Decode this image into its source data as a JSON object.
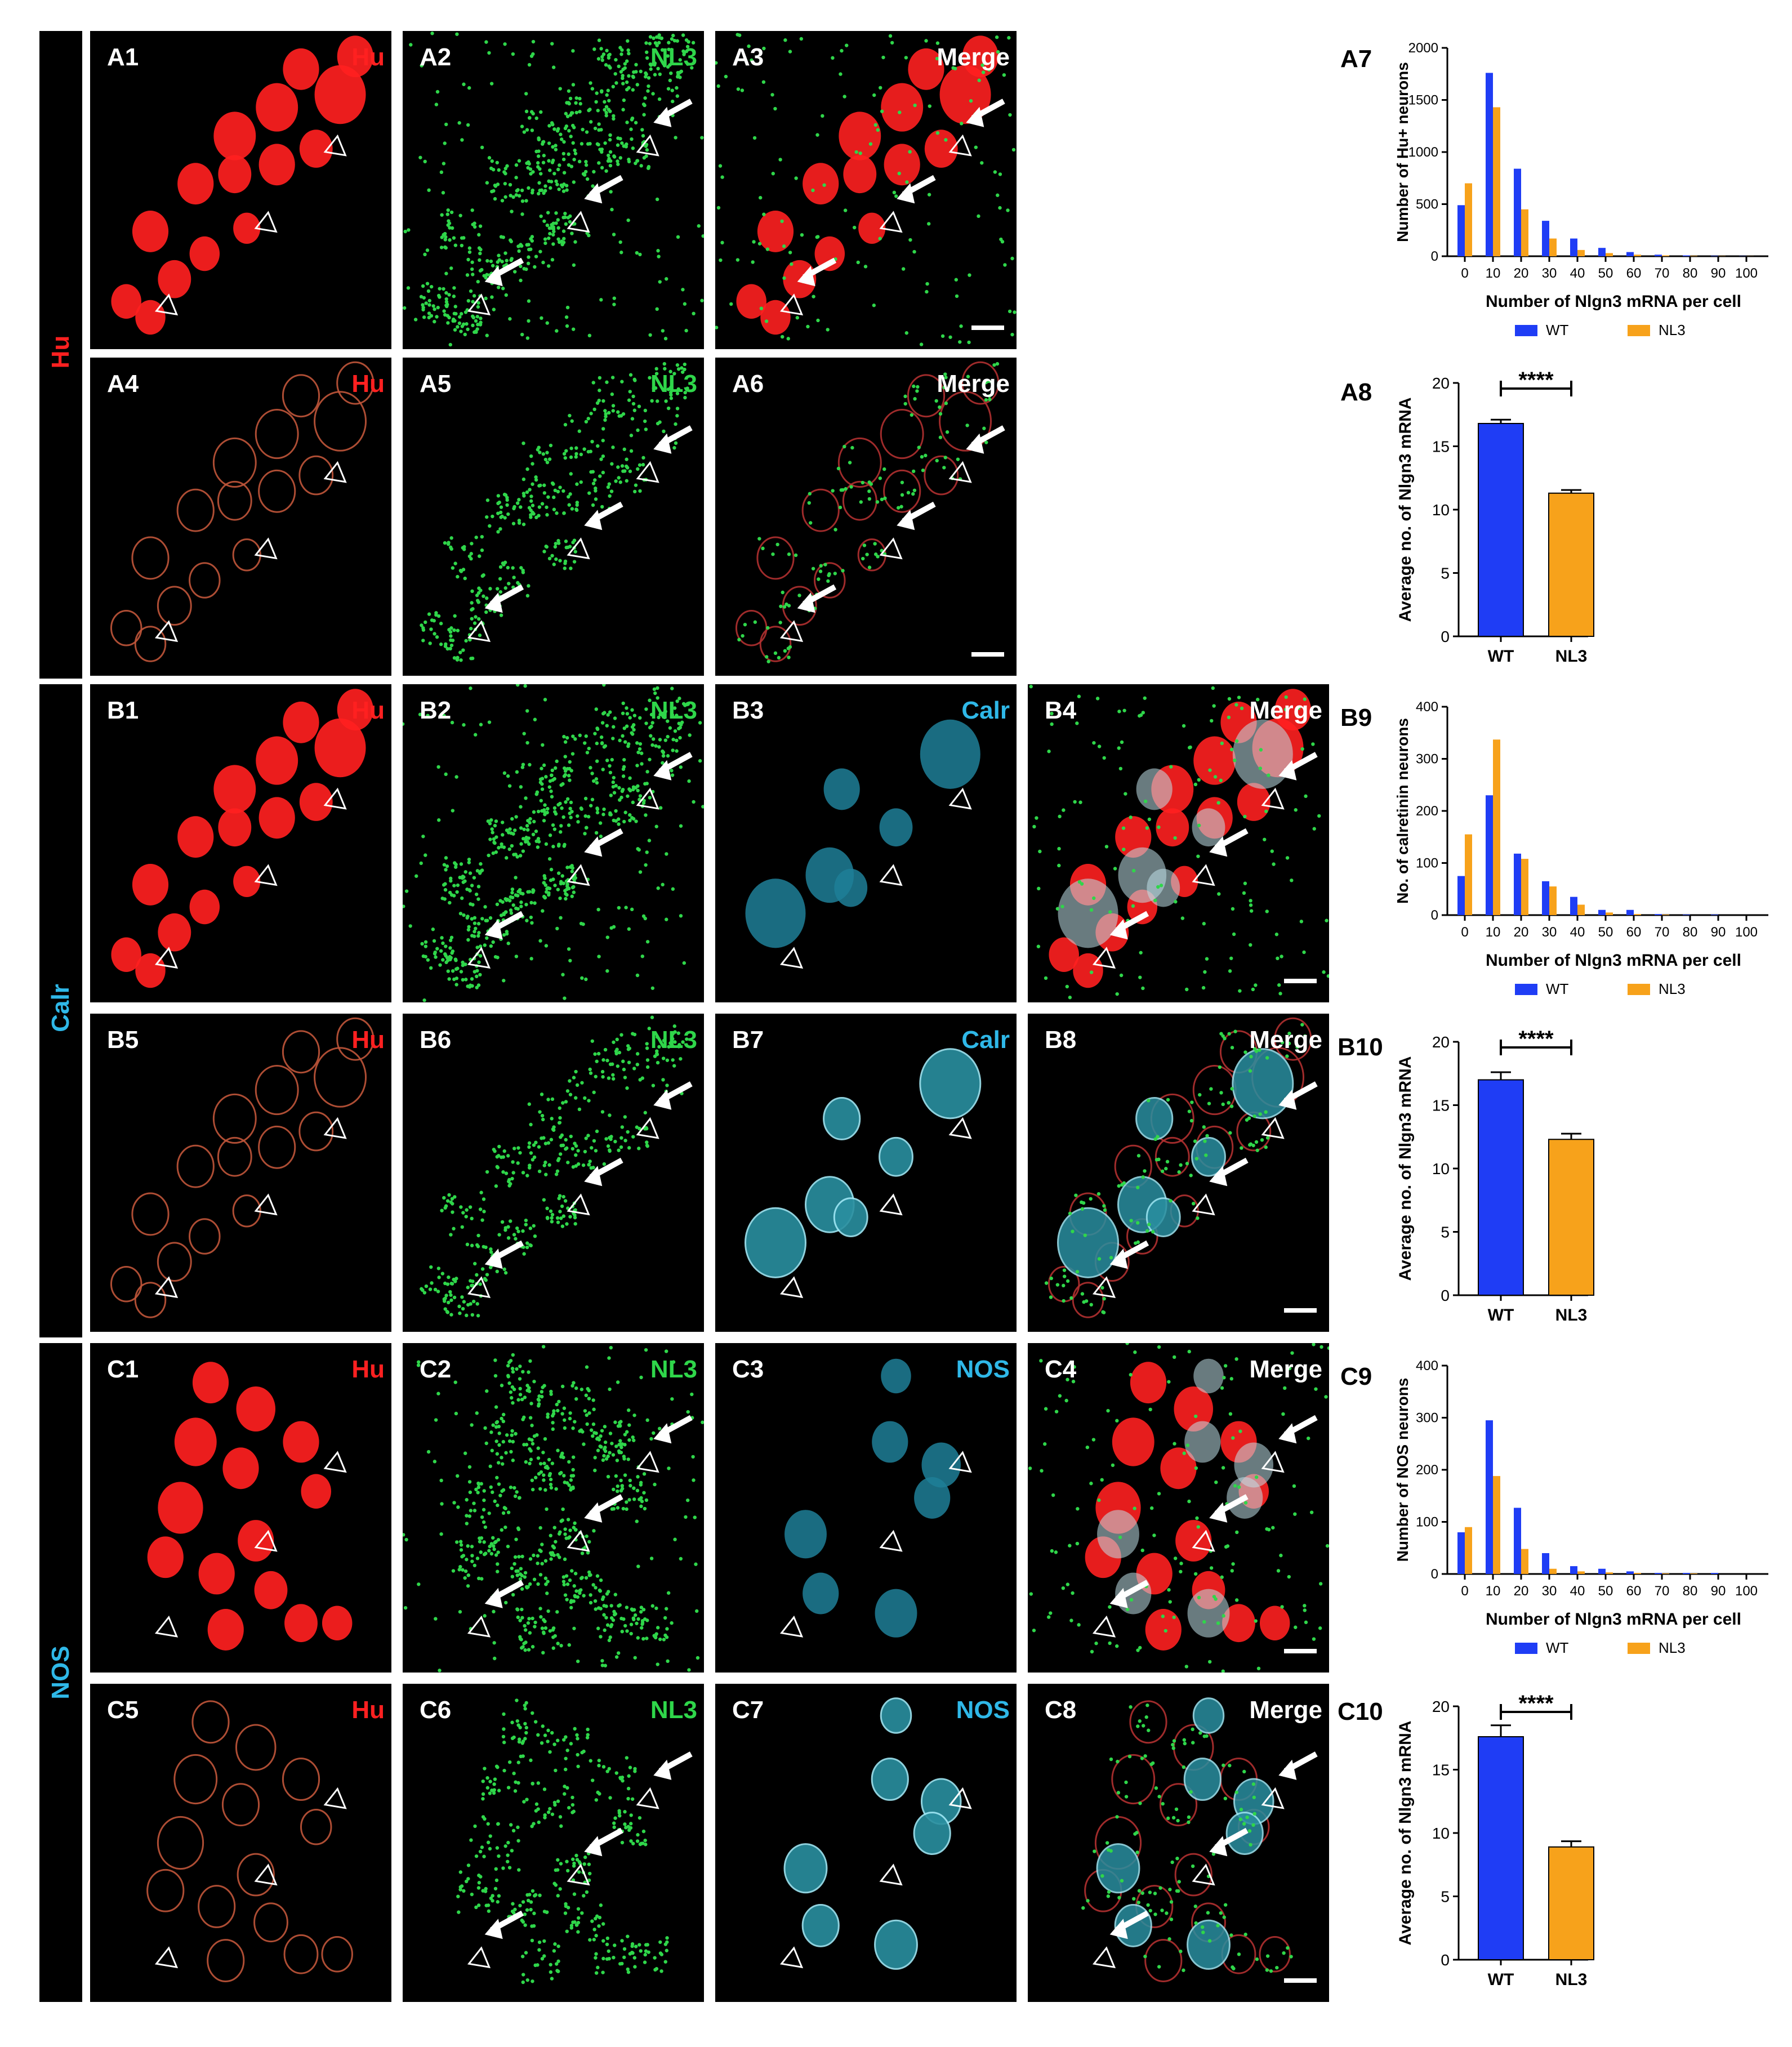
{
  "colors": {
    "red": "#ff2020",
    "green": "#2fd64a",
    "cyan": "#2fb8e8",
    "wt_bar": "#1f3df5",
    "nl3_bar": "#f7a21b"
  },
  "row_labels": {
    "hu": "Hu",
    "calr": "Calr",
    "nos": "NOS"
  },
  "panels": {
    "A1": {
      "id": "A1",
      "channel": "Hu"
    },
    "A2": {
      "id": "A2",
      "channel": "NL3"
    },
    "A3": {
      "id": "A3",
      "channel": "Merge"
    },
    "A4": {
      "id": "A4",
      "channel": "Hu"
    },
    "A5": {
      "id": "A5",
      "channel": "NL3"
    },
    "A6": {
      "id": "A6",
      "channel": "Merge"
    },
    "B1": {
      "id": "B1",
      "channel": "Hu"
    },
    "B2": {
      "id": "B2",
      "channel": "NL3"
    },
    "B3": {
      "id": "B3",
      "channel": "Calr"
    },
    "B4": {
      "id": "B4",
      "channel": "Merge"
    },
    "B5": {
      "id": "B5",
      "channel": "Hu"
    },
    "B6": {
      "id": "B6",
      "channel": "NL3"
    },
    "B7": {
      "id": "B7",
      "channel": "Calr"
    },
    "B8": {
      "id": "B8",
      "channel": "Merge"
    },
    "C1": {
      "id": "C1",
      "channel": "Hu"
    },
    "C2": {
      "id": "C2",
      "channel": "NL3"
    },
    "C3": {
      "id": "C3",
      "channel": "NOS"
    },
    "C4": {
      "id": "C4",
      "channel": "Merge"
    },
    "C5": {
      "id": "C5",
      "channel": "Hu"
    },
    "C6": {
      "id": "C6",
      "channel": "NL3"
    },
    "C7": {
      "id": "C7",
      "channel": "NOS"
    },
    "C8": {
      "id": "C8",
      "channel": "Merge"
    }
  },
  "chart_labels": {
    "A7": "A7",
    "A8": "A8",
    "B9": "B9",
    "B10": "B10",
    "C9": "C9",
    "C10": "C10"
  },
  "chart_data": [
    {
      "id": "A7",
      "type": "bar",
      "categories": [
        "0",
        "10",
        "20",
        "30",
        "40",
        "50",
        "60",
        "70",
        "80",
        "90",
        "100"
      ],
      "series": [
        {
          "name": "WT",
          "values": [
            490,
            1760,
            840,
            340,
            170,
            80,
            40,
            15,
            8,
            4,
            2
          ]
        },
        {
          "name": "NL3",
          "values": [
            700,
            1430,
            450,
            170,
            60,
            30,
            15,
            8,
            4,
            2,
            1
          ]
        }
      ],
      "xlabel": "Number of Nlgn3 mRNA per cell",
      "ylabel": "Number of Hu+ neurons",
      "ylim": [
        0,
        2000
      ],
      "yticks": [
        "0",
        "500",
        "1000",
        "1500",
        "2000"
      ],
      "legend": [
        "WT",
        "NL3"
      ]
    },
    {
      "id": "A8",
      "type": "bar",
      "categories": [
        "WT",
        "NL3"
      ],
      "values": [
        16.8,
        11.3
      ],
      "errors": [
        0.3,
        0.25
      ],
      "ylabel": "Average no. of Nlgn3 mRNA",
      "ylim": [
        0,
        20
      ],
      "yticks": [
        "0",
        "5",
        "10",
        "15",
        "20"
      ],
      "significance": "****"
    },
    {
      "id": "B9",
      "type": "bar",
      "categories": [
        "0",
        "10",
        "20",
        "30",
        "40",
        "50",
        "60",
        "70",
        "80",
        "90",
        "100"
      ],
      "series": [
        {
          "name": "WT",
          "values": [
            75,
            230,
            118,
            65,
            35,
            10,
            10,
            2,
            1,
            1,
            0
          ]
        },
        {
          "name": "NL3",
          "values": [
            155,
            337,
            108,
            55,
            20,
            5,
            2,
            1,
            0,
            0,
            0
          ]
        }
      ],
      "xlabel": "Number of Nlgn3 mRNA per cell",
      "ylabel": "No. of calretinin neurons",
      "ylim": [
        0,
        400
      ],
      "yticks": [
        "0",
        "100",
        "200",
        "300",
        "400"
      ],
      "legend": [
        "WT",
        "NL3"
      ]
    },
    {
      "id": "B10",
      "type": "bar",
      "categories": [
        "WT",
        "NL3"
      ],
      "values": [
        17.0,
        12.3
      ],
      "errors": [
        0.6,
        0.45
      ],
      "ylabel": "Average no. of Nlgn3 mRNA",
      "ylim": [
        0,
        20
      ],
      "yticks": [
        "0",
        "5",
        "10",
        "15",
        "20"
      ],
      "significance": "****"
    },
    {
      "id": "C9",
      "type": "bar",
      "categories": [
        "0",
        "10",
        "20",
        "30",
        "40",
        "50",
        "60",
        "70",
        "80",
        "90",
        "100"
      ],
      "series": [
        {
          "name": "WT",
          "values": [
            80,
            295,
            127,
            40,
            15,
            10,
            5,
            2,
            2,
            2,
            0
          ]
        },
        {
          "name": "NL3",
          "values": [
            90,
            188,
            48,
            10,
            5,
            3,
            2,
            1,
            1,
            0,
            0
          ]
        }
      ],
      "xlabel": "Number of Nlgn3 mRNA per cell",
      "ylabel": "Number of NOS neurons",
      "ylim": [
        0,
        400
      ],
      "yticks": [
        "0",
        "100",
        "200",
        "300",
        "400"
      ],
      "legend": [
        "WT",
        "NL3"
      ]
    },
    {
      "id": "C10",
      "type": "bar",
      "categories": [
        "WT",
        "NL3"
      ],
      "values": [
        17.6,
        8.9
      ],
      "errors": [
        0.9,
        0.45
      ],
      "ylabel": "Average no. of Nlgn3 mRNA",
      "ylim": [
        0,
        20
      ],
      "yticks": [
        "0",
        "5",
        "10",
        "15",
        "20"
      ],
      "significance": "****"
    }
  ]
}
